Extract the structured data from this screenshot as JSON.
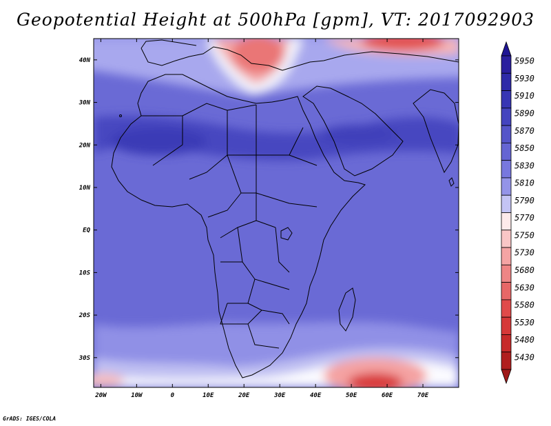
{
  "title": "Geopotential Height at 500hPa [gpm], VT: 2017092903",
  "credit": "GrADS: IGES/COLA",
  "map": {
    "lon_range": [
      -22,
      80
    ],
    "lat_range": [
      -37,
      45
    ],
    "lon_ticks": [
      {
        "value": -20,
        "label": "20W"
      },
      {
        "value": -10,
        "label": "10W"
      },
      {
        "value": 0,
        "label": "0"
      },
      {
        "value": 10,
        "label": "10E"
      },
      {
        "value": 20,
        "label": "20E"
      },
      {
        "value": 30,
        "label": "30E"
      },
      {
        "value": 40,
        "label": "40E"
      },
      {
        "value": 50,
        "label": "50E"
      },
      {
        "value": 60,
        "label": "60E"
      },
      {
        "value": 70,
        "label": "70E"
      }
    ],
    "lat_ticks": [
      {
        "value": 40,
        "label": "40N"
      },
      {
        "value": 30,
        "label": "30N"
      },
      {
        "value": 20,
        "label": "20N"
      },
      {
        "value": 10,
        "label": "10N"
      },
      {
        "value": 0,
        "label": "EQ"
      },
      {
        "value": -10,
        "label": "10S"
      },
      {
        "value": -20,
        "label": "20S"
      },
      {
        "value": -30,
        "label": "30S"
      }
    ]
  },
  "colorbar": {
    "levels": [
      {
        "label": "5950",
        "color": "#2a1f9e"
      },
      {
        "label": "5930",
        "color": "#2e2aa8"
      },
      {
        "label": "5910",
        "color": "#3736b4"
      },
      {
        "label": "5890",
        "color": "#4444bf"
      },
      {
        "label": "5870",
        "color": "#5555c9"
      },
      {
        "label": "5850",
        "color": "#6565d3"
      },
      {
        "label": "5830",
        "color": "#7878de"
      },
      {
        "label": "5810",
        "color": "#9494e8"
      },
      {
        "label": "5790",
        "color": "#c4c4f4"
      },
      {
        "label": "5770",
        "color": "#fdeaea"
      },
      {
        "label": "5750",
        "color": "#f9c6c6"
      },
      {
        "label": "5730",
        "color": "#f4a4a4"
      },
      {
        "label": "5680",
        "color": "#ee8585"
      },
      {
        "label": "5630",
        "color": "#e76767"
      },
      {
        "label": "5580",
        "color": "#e04a4a"
      },
      {
        "label": "5530",
        "color": "#d63838"
      },
      {
        "label": "5480",
        "color": "#c72a2a"
      },
      {
        "label": "5430",
        "color": "#b01e1e"
      }
    ],
    "top_arrow_color": "#1f1594",
    "bottom_arrow_color": "#a01a1a"
  }
}
